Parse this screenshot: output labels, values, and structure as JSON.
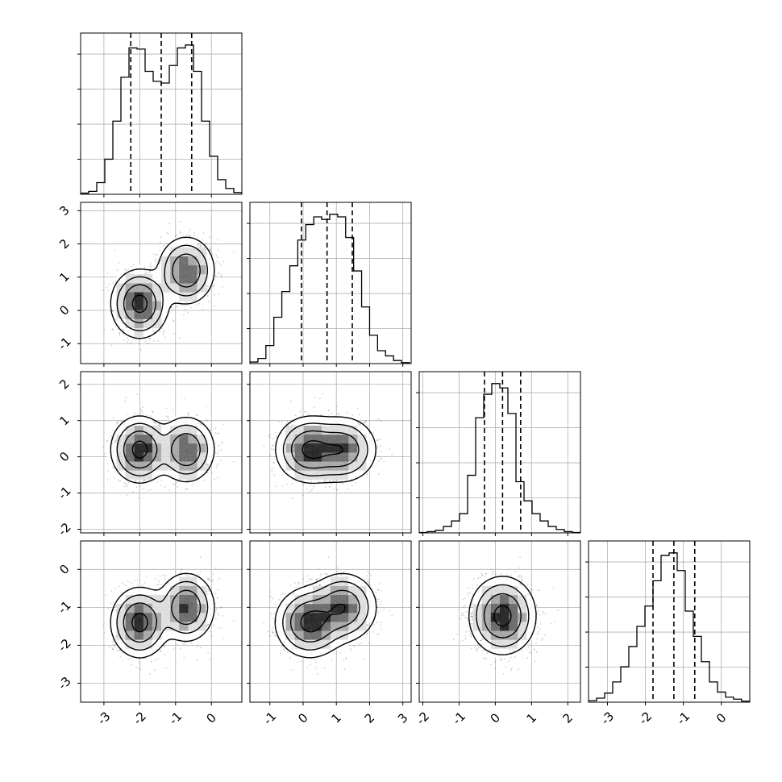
{
  "chart_data": {
    "type": "corner",
    "title": "",
    "parameters": [
      {
        "name": "",
        "range": [
          -3.65,
          0.85
        ],
        "ticks": [
          -3,
          -2,
          -1,
          0
        ],
        "quantiles": [
          -2.25,
          -1.4,
          -0.55
        ],
        "histogram": {
          "start": -3.65,
          "width": 0.225,
          "counts": [
            0.2,
            0.5,
            2.0,
            6.0,
            12.5,
            20.0,
            25.0,
            24.8,
            21.0,
            19.3,
            19.0,
            22.0,
            25.0,
            25.5,
            21.0,
            12.5,
            6.5,
            2.5,
            1.0,
            0.3
          ]
        }
      },
      {
        "name": "",
        "range": [
          -1.6,
          3.25
        ],
        "ticks": [
          -1,
          0,
          1,
          2,
          3
        ],
        "quantiles": [
          -0.05,
          0.72,
          1.48
        ],
        "histogram": {
          "start": -1.6,
          "width": 0.24,
          "counts": [
            0.3,
            1.0,
            3.5,
            9.0,
            14.0,
            19.0,
            24.0,
            27.0,
            28.5,
            28.0,
            29.0,
            28.5,
            24.5,
            18.0,
            11.0,
            5.5,
            2.5,
            1.5,
            0.6,
            0.2
          ]
        }
      },
      {
        "name": "",
        "range": [
          -2.1,
          2.35
        ],
        "ticks": [
          -2,
          -1,
          0,
          1,
          2
        ],
        "quantiles": [
          -0.3,
          0.2,
          0.7
        ],
        "histogram": {
          "start": -2.1,
          "width": 0.2225,
          "counts": [
            0.1,
            0.3,
            0.6,
            1.5,
            2.8,
            4.5,
            13.5,
            27.0,
            32.5,
            35.0,
            34.0,
            28.0,
            12.0,
            7.5,
            4.5,
            2.8,
            1.5,
            0.8,
            0.3,
            0.1
          ]
        }
      },
      {
        "name": "",
        "range": [
          -3.5,
          0.75
        ],
        "ticks": [
          -3,
          -2,
          -1,
          0
        ],
        "quantiles": [
          -1.8,
          -1.25,
          -0.7
        ],
        "histogram": {
          "start": -3.5,
          "width": 0.2125,
          "counts": [
            0.3,
            0.8,
            1.8,
            4.0,
            7.0,
            11.0,
            15.0,
            19.0,
            24.0,
            29.0,
            29.5,
            26.0,
            18.0,
            13.0,
            8.0,
            4.0,
            2.0,
            1.0,
            0.6,
            0.2
          ]
        }
      }
    ],
    "mixture": [
      {
        "weight": 0.55,
        "mean": [
          -2.0,
          0.2,
          0.2,
          -1.4
        ],
        "sigma": [
          0.35,
          0.45,
          0.4,
          0.4
        ]
      },
      {
        "weight": 0.45,
        "mean": [
          -0.7,
          1.2,
          0.2,
          -1.0
        ],
        "sigma": [
          0.35,
          0.45,
          0.4,
          0.4
        ]
      }
    ],
    "samples_shown": 2500,
    "contour_fill_colors": [
      "#ffffff",
      "#dedede",
      "#a6a6a6",
      "#666666",
      "#1f1f1f"
    ],
    "grid": true,
    "quantile_line_style": "dashed",
    "xlabel": "",
    "ylabel": ""
  }
}
